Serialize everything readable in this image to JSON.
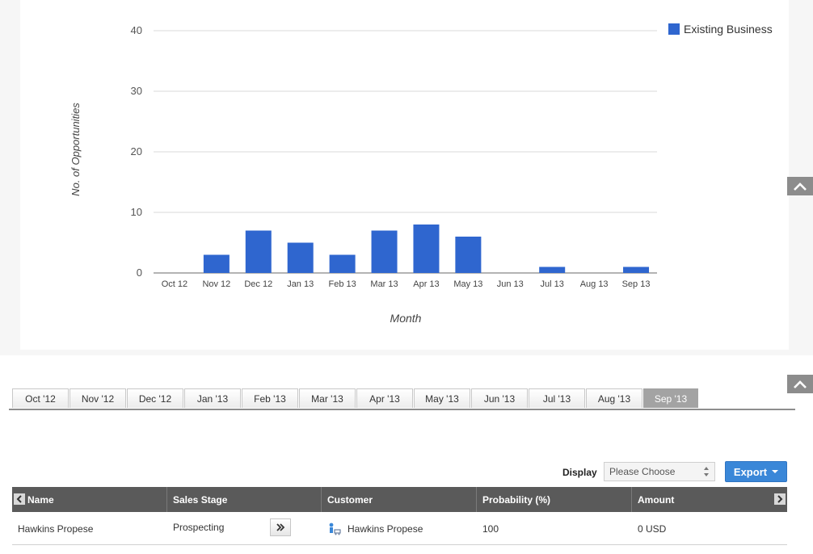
{
  "chart_data": {
    "type": "bar",
    "categories": [
      "Oct 12",
      "Nov 12",
      "Dec 12",
      "Jan 13",
      "Feb 13",
      "Mar 13",
      "Apr 13",
      "May 13",
      "Jun 13",
      "Jul 13",
      "Aug 13",
      "Sep 13"
    ],
    "series": [
      {
        "name": "Existing Business",
        "values": [
          0,
          3,
          7,
          5,
          3,
          7,
          8,
          6,
          0,
          1,
          0,
          1
        ],
        "color": "#2f66cf"
      }
    ],
    "xlabel": "Month",
    "ylabel": "No. of Opportunities",
    "ylim": [
      0,
      40
    ],
    "yticks": [
      0,
      10,
      20,
      30,
      40
    ],
    "grid": true,
    "legend": "top-right"
  },
  "tabs": [
    {
      "label": "Oct '12"
    },
    {
      "label": "Nov '12"
    },
    {
      "label": "Dec '12"
    },
    {
      "label": "Jan '13"
    },
    {
      "label": "Feb '13"
    },
    {
      "label": "Mar '13"
    },
    {
      "label": "Apr '13"
    },
    {
      "label": "May '13"
    },
    {
      "label": "Jun '13"
    },
    {
      "label": "Jul '13"
    },
    {
      "label": "Aug '13"
    },
    {
      "label": "Sep '13",
      "active": true
    }
  ],
  "toolbar": {
    "display_label": "Display",
    "select_value": "Please Choose",
    "export_label": "Export"
  },
  "table": {
    "columns": [
      "Name",
      "Sales Stage",
      "Customer",
      "Probability (%)",
      "Amount"
    ],
    "rows": [
      {
        "name": "Hawkins Propese",
        "sales_stage": "Prospecting",
        "customer": "Hawkins Propese",
        "probability": "100",
        "amount": "0 USD"
      }
    ]
  },
  "icons": {
    "collapse": "chevron-up-icon",
    "customer": "customer-icon",
    "scroll_left": "chevron-left-icon",
    "scroll_right": "chevron-right-icon"
  },
  "colors": {
    "accent": "#3a87d8",
    "bar": "#2f66cf",
    "header": "#5a5a5a",
    "active_tab": "#a3a3a3"
  }
}
